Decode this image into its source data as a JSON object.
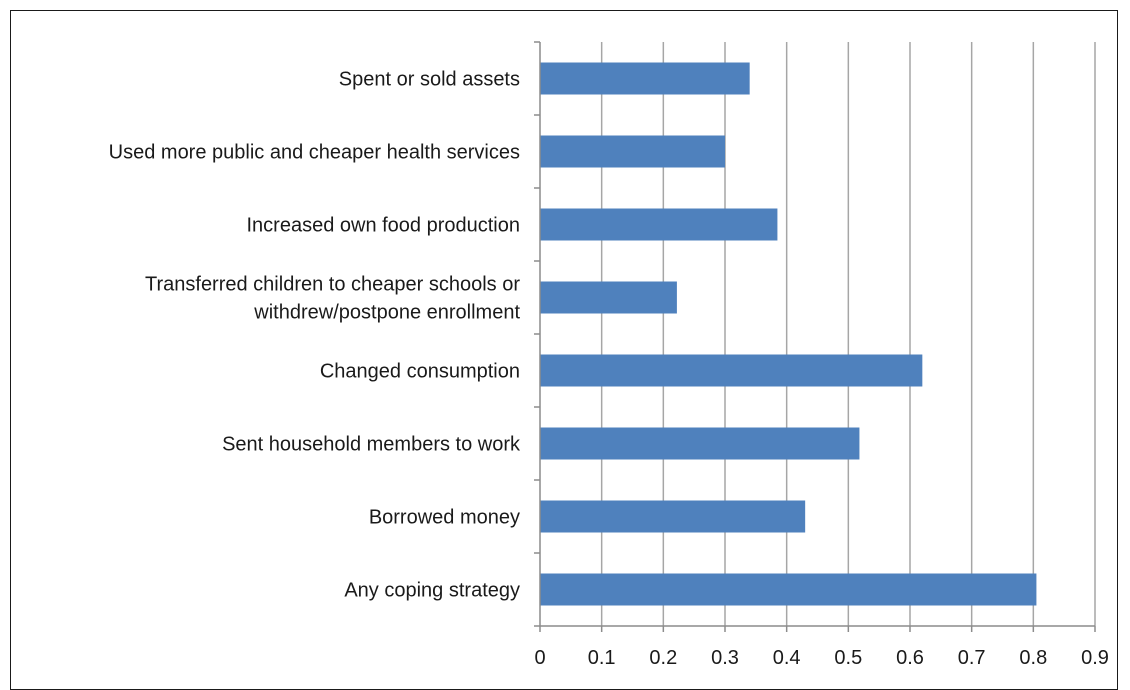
{
  "chart_data": {
    "type": "bar",
    "orientation": "horizontal",
    "categories": [
      [
        "Spent or sold assets"
      ],
      [
        "Used more public and cheaper health services"
      ],
      [
        "Increased own food production"
      ],
      [
        "Transferred children to cheaper schools or",
        "withdrew/postpone enrollment"
      ],
      [
        "Changed consumption"
      ],
      [
        "Sent household members to work"
      ],
      [
        "Borrowed money"
      ],
      [
        "Any coping strategy"
      ]
    ],
    "values": [
      0.34,
      0.3,
      0.385,
      0.222,
      0.62,
      0.518,
      0.43,
      0.805
    ],
    "xlim": [
      0,
      0.9
    ],
    "xticks": [
      "0",
      "0.1",
      "0.2",
      "0.3",
      "0.4",
      "0.5",
      "0.6",
      "0.7",
      "0.8",
      "0.9"
    ],
    "grid": "vertical",
    "legend": "none",
    "bar_color": "#4f81bd",
    "grid_color": "#a6a6a6",
    "title": "",
    "xlabel": "",
    "ylabel": ""
  }
}
